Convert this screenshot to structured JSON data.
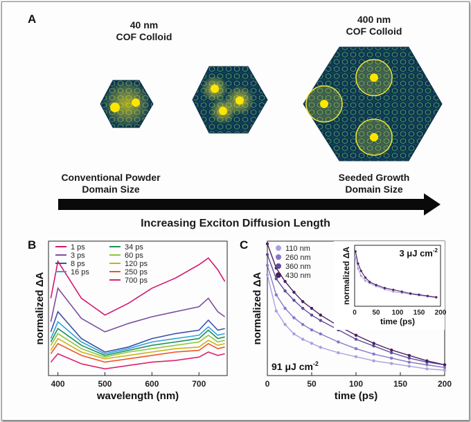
{
  "panelA": {
    "letter": "A",
    "left_size": "40 nm",
    "left_kind": "COF Colloid",
    "right_size": "400 nm",
    "right_kind": "COF Colloid",
    "left_domain_1": "Conventional Powder",
    "left_domain_2": "Domain Size",
    "right_domain_1": "Seeded Growth",
    "right_domain_2": "Domain Size",
    "arrow_label": "Increasing Exciton Diffusion Length",
    "colors": {
      "lattice_dark": "#0d3a5c",
      "lattice_green": "#2f7d5a",
      "highlight": "#f2e63a",
      "arrow": "#0a0a0a"
    }
  },
  "panelB": {
    "letter": "B",
    "chart_data": {
      "type": "line",
      "xlabel": "wavelength (nm)",
      "ylabel": "normalized ΔA",
      "xlim": [
        380,
        760
      ],
      "xticks": [
        400,
        500,
        600,
        700
      ],
      "legend_position": "top-left",
      "series": [
        {
          "name": "1 ps",
          "color": "#d4166f",
          "x": [
            385,
            400,
            450,
            500,
            550,
            600,
            650,
            700,
            720,
            740,
            755
          ],
          "y": [
            0.38,
            0.6,
            0.38,
            0.28,
            0.35,
            0.44,
            0.5,
            0.58,
            0.62,
            0.55,
            0.48
          ]
        },
        {
          "name": "3 ps",
          "color": "#7b4ea0",
          "x": [
            385,
            400,
            450,
            500,
            550,
            600,
            650,
            700,
            720,
            740,
            755
          ],
          "y": [
            0.24,
            0.44,
            0.26,
            0.18,
            0.23,
            0.27,
            0.3,
            0.33,
            0.38,
            0.3,
            0.27
          ]
        },
        {
          "name": "8 ps",
          "color": "#3a4fa8",
          "x": [
            385,
            400,
            450,
            500,
            550,
            600,
            650,
            700,
            720,
            740,
            755
          ],
          "y": [
            0.18,
            0.3,
            0.14,
            0.06,
            0.09,
            0.14,
            0.17,
            0.19,
            0.25,
            0.19,
            0.2
          ]
        },
        {
          "name": "16 ps",
          "color": "#2aa3e0",
          "x": [
            385,
            400,
            450,
            500,
            550,
            600,
            650,
            700,
            720,
            740,
            755
          ],
          "y": [
            0.14,
            0.24,
            0.12,
            0.05,
            0.08,
            0.12,
            0.14,
            0.16,
            0.21,
            0.16,
            0.17
          ]
        },
        {
          "name": "34 ps",
          "color": "#1f8f5a",
          "x": [
            385,
            400,
            450,
            500,
            550,
            600,
            650,
            700,
            720,
            740,
            755
          ],
          "y": [
            0.12,
            0.2,
            0.1,
            0.04,
            0.07,
            0.1,
            0.12,
            0.14,
            0.19,
            0.14,
            0.15
          ]
        },
        {
          "name": "60 ps",
          "color": "#8cc63f",
          "x": [
            385,
            400,
            450,
            500,
            550,
            600,
            650,
            700,
            720,
            740,
            755
          ],
          "y": [
            0.1,
            0.17,
            0.08,
            0.03,
            0.06,
            0.08,
            0.1,
            0.12,
            0.16,
            0.12,
            0.13
          ]
        },
        {
          "name": "120 ps",
          "color": "#c9b21a",
          "x": [
            385,
            400,
            450,
            500,
            550,
            600,
            650,
            700,
            720,
            740,
            755
          ],
          "y": [
            0.07,
            0.14,
            0.06,
            0.02,
            0.04,
            0.06,
            0.08,
            0.09,
            0.13,
            0.1,
            0.11
          ]
        },
        {
          "name": "250 ps",
          "color": "#f0542a",
          "x": [
            385,
            400,
            450,
            500,
            550,
            600,
            650,
            700,
            720,
            740,
            755
          ],
          "y": [
            0.05,
            0.11,
            0.04,
            0.0,
            0.02,
            0.04,
            0.06,
            0.07,
            0.11,
            0.08,
            0.09
          ]
        },
        {
          "name": "700 ps",
          "color": "#e0206e",
          "x": [
            385,
            400,
            450,
            500,
            550,
            600,
            650,
            700,
            720,
            740,
            755
          ],
          "y": [
            0.0,
            0.05,
            -0.01,
            -0.04,
            -0.02,
            0.0,
            0.01,
            0.03,
            0.06,
            0.04,
            0.05
          ]
        }
      ]
    }
  },
  "panelC": {
    "letter": "C",
    "main_annotation": "91 μJ cm",
    "main_annotation_sup": "-2",
    "inset_annotation": "3 μJ cm",
    "inset_annotation_sup": "-2",
    "chart_data": [
      {
        "type": "scatter",
        "xlabel": "time (ps)",
        "ylabel": "normalized ΔA",
        "xlim": [
          0,
          200
        ],
        "xticks": [
          0,
          50,
          100,
          150,
          200
        ],
        "legend_position": "top-left",
        "series": [
          {
            "name": "110 nm",
            "color": "#a9a0e0",
            "x": [
              0,
              10,
              20,
              30,
              40,
              50,
              60,
              80,
              100,
              120,
              140,
              160,
              180,
              200
            ],
            "y": [
              0.75,
              0.48,
              0.38,
              0.31,
              0.27,
              0.24,
              0.21,
              0.17,
              0.14,
              0.11,
              0.09,
              0.07,
              0.05,
              0.04
            ]
          },
          {
            "name": "260 nm",
            "color": "#8477c8",
            "x": [
              0,
              10,
              20,
              30,
              40,
              50,
              60,
              80,
              100,
              120,
              140,
              160,
              180,
              200
            ],
            "y": [
              0.82,
              0.6,
              0.5,
              0.43,
              0.38,
              0.34,
              0.31,
              0.25,
              0.2,
              0.16,
              0.13,
              0.1,
              0.08,
              0.06
            ]
          },
          {
            "name": "360 nm",
            "color": "#5e4c9e",
            "x": [
              0,
              10,
              20,
              30,
              40,
              50,
              60,
              80,
              100,
              120,
              140,
              160,
              180,
              200
            ],
            "y": [
              0.9,
              0.72,
              0.63,
              0.56,
              0.5,
              0.45,
              0.41,
              0.34,
              0.27,
              0.22,
              0.17,
              0.13,
              0.1,
              0.08
            ]
          },
          {
            "name": "430 nm",
            "color": "#4a1f5e",
            "x": [
              0,
              10,
              20,
              30,
              40,
              50,
              60,
              80,
              100,
              120,
              140,
              160,
              180,
              200
            ],
            "y": [
              0.98,
              0.8,
              0.7,
              0.62,
              0.55,
              0.5,
              0.45,
              0.37,
              0.3,
              0.24,
              0.19,
              0.15,
              0.11,
              0.08
            ]
          }
        ]
      },
      {
        "type": "scatter",
        "xlabel": "time (ps)",
        "ylabel": "normalized ΔA",
        "xlim": [
          0,
          200
        ],
        "xticks": [
          0,
          50,
          100,
          150,
          200
        ],
        "series": [
          {
            "name": "110 nm",
            "color": "#a9a0e0",
            "x": [
              2,
              8,
              15,
              25,
              35,
              50,
              70,
              90,
              110,
              130,
              150,
              170,
              190
            ],
            "y": [
              0.8,
              0.62,
              0.5,
              0.42,
              0.38,
              0.33,
              0.28,
              0.24,
              0.22,
              0.2,
              0.18,
              0.16,
              0.14
            ]
          },
          {
            "name": "430 nm",
            "color": "#4a1f5e",
            "x": [
              2,
              8,
              15,
              25,
              35,
              50,
              70,
              90,
              110,
              130,
              150,
              170,
              190
            ],
            "y": [
              0.9,
              0.7,
              0.58,
              0.47,
              0.4,
              0.35,
              0.3,
              0.27,
              0.24,
              0.21,
              0.19,
              0.17,
              0.15
            ]
          }
        ]
      }
    ]
  }
}
